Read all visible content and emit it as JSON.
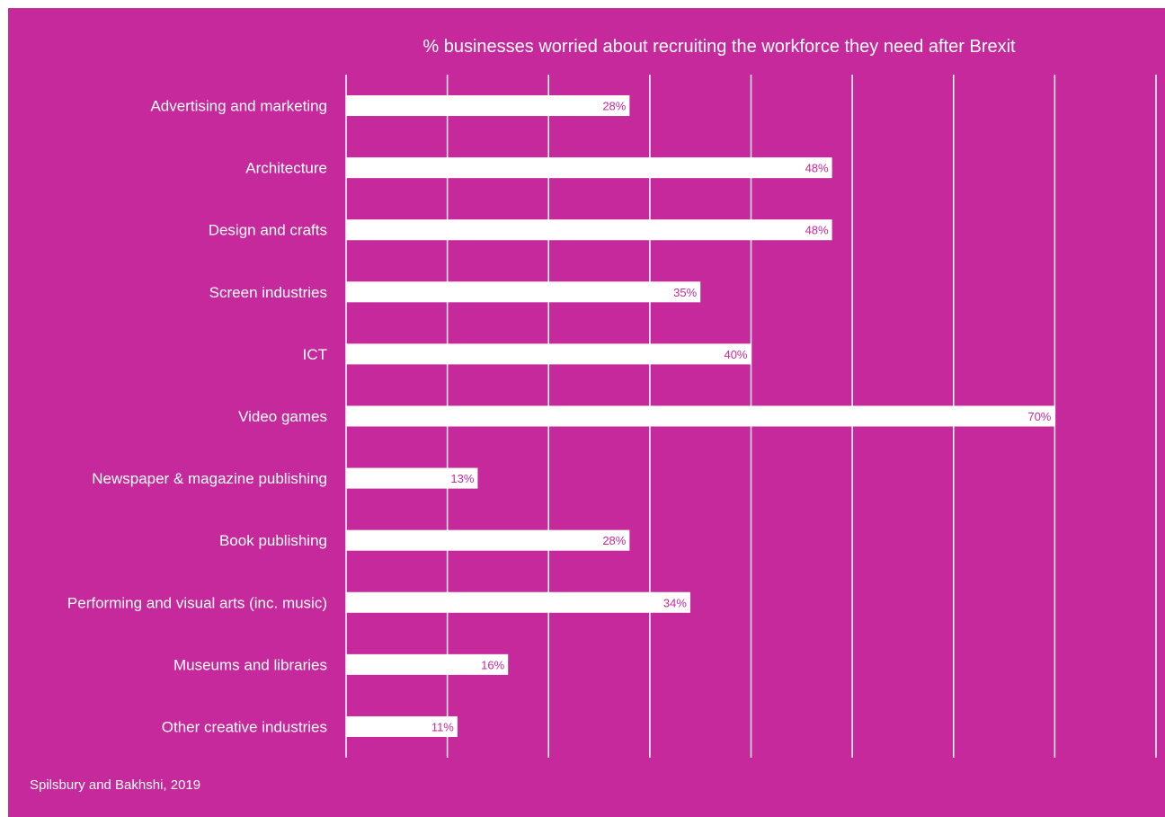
{
  "colors": {
    "background": "#c6299b",
    "bar": "#ffffff",
    "gridline": "#ffffff",
    "value_label": "#c6299b",
    "text": "#ffffff"
  },
  "chart_data": {
    "type": "bar",
    "orientation": "horizontal",
    "title": "% businesses worried about recruiting the workforce they need after Brexit",
    "source": "Spilsbury and Bakhshi, 2019",
    "categories": [
      "Advertising and marketing",
      "Architecture",
      "Design and crafts",
      "Screen industries",
      "ICT",
      "Video games",
      "Newspaper & magazine publishing",
      "Book publishing",
      "Performing and visual arts (inc. music)",
      "Museums and libraries",
      "Other creative industries"
    ],
    "values": [
      28,
      48,
      48,
      35,
      40,
      70,
      13,
      28,
      34,
      16,
      11
    ],
    "value_labels": [
      "28%",
      "48%",
      "48%",
      "35%",
      "40%",
      "70%",
      "13%",
      "28%",
      "34%",
      "16%",
      "11%"
    ],
    "xlim": [
      0,
      80
    ],
    "x_gridline_step": 10,
    "grid": true,
    "x_tick_labels_shown": false,
    "legend": "none"
  }
}
